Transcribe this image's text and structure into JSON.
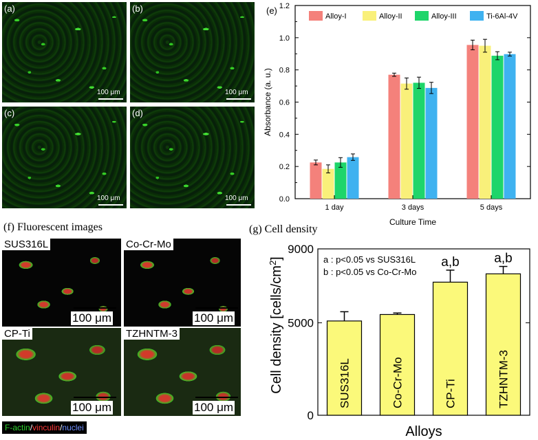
{
  "micrographs": [
    {
      "label": "(a)",
      "scale": "100 μm"
    },
    {
      "label": "(b)",
      "scale": "100 μm"
    },
    {
      "label": "(c)",
      "scale": "100 μm"
    },
    {
      "label": "(d)",
      "scale": "100 μm"
    }
  ],
  "fluorescent": {
    "title": "(f) Fluorescent images",
    "panels": [
      {
        "name": "SUS316L",
        "scale": "100 μm"
      },
      {
        "name": "Co-Cr-Mo",
        "scale": "100 μm"
      },
      {
        "name": "CP-Ti",
        "scale": "100 μm"
      },
      {
        "name": "TZHNTM-3",
        "scale": "100 μm"
      }
    ],
    "stain_legend": [
      {
        "text": "F-actin",
        "color": "#2fd12f"
      },
      {
        "text": "/",
        "color": "#ffffff"
      },
      {
        "text": "vinculin",
        "color": "#ff3b3b"
      },
      {
        "text": "/",
        "color": "#ffffff"
      },
      {
        "text": "nuclei",
        "color": "#6f8fff"
      }
    ]
  },
  "chart_data": [
    {
      "type": "bar",
      "panel_label": "(e)",
      "categories": [
        "1 day",
        "3 days",
        "5 days"
      ],
      "series": [
        {
          "name": "Alloy-I",
          "color": "#f4817b",
          "values": [
            0.225,
            0.77,
            0.955
          ],
          "errors": [
            0.015,
            0.01,
            0.03
          ]
        },
        {
          "name": "Alloy-II",
          "color": "#f9f07a",
          "values": [
            0.185,
            0.715,
            0.95
          ],
          "errors": [
            0.025,
            0.035,
            0.04
          ]
        },
        {
          "name": "Alloy-III",
          "color": "#1ed56a",
          "values": [
            0.225,
            0.72,
            0.888
          ],
          "errors": [
            0.03,
            0.035,
            0.025
          ]
        },
        {
          "name": "Ti-6Al-4V",
          "color": "#3fb2f0",
          "values": [
            0.258,
            0.688,
            0.898
          ],
          "errors": [
            0.02,
            0.035,
            0.012
          ]
        }
      ],
      "xlabel": "Culture Time",
      "ylabel": "Absorbance (a. u.)",
      "ylim": [
        0.0,
        1.2
      ],
      "yticks": [
        "0.0",
        "0.2",
        "0.4",
        "0.6",
        "0.8",
        "1.0",
        "1.2"
      ],
      "legend": "top"
    },
    {
      "type": "bar",
      "panel_label": "(g) Cell density",
      "categories": [
        "SUS316L",
        "Co-Cr-Mo",
        "CP-Ti",
        "TZHNTM-3"
      ],
      "values": [
        5100,
        5450,
        7200,
        7650
      ],
      "errors": [
        500,
        80,
        650,
        400
      ],
      "bar_color": "#fbf97a",
      "xlabel": "Alloys",
      "ylabel": "Cell density [cells/cm",
      "ylabel_sup": "2",
      "ylabel_end": "]",
      "ylim": [
        0,
        9000
      ],
      "yticks": [
        "0",
        "5000",
        "9000"
      ],
      "annotations": [
        "a : p<0.05 vs SUS316L",
        "b : p<0.05 vs Co-Cr-Mo"
      ],
      "significance": [
        "",
        "",
        "a,b",
        "a,b"
      ]
    }
  ]
}
